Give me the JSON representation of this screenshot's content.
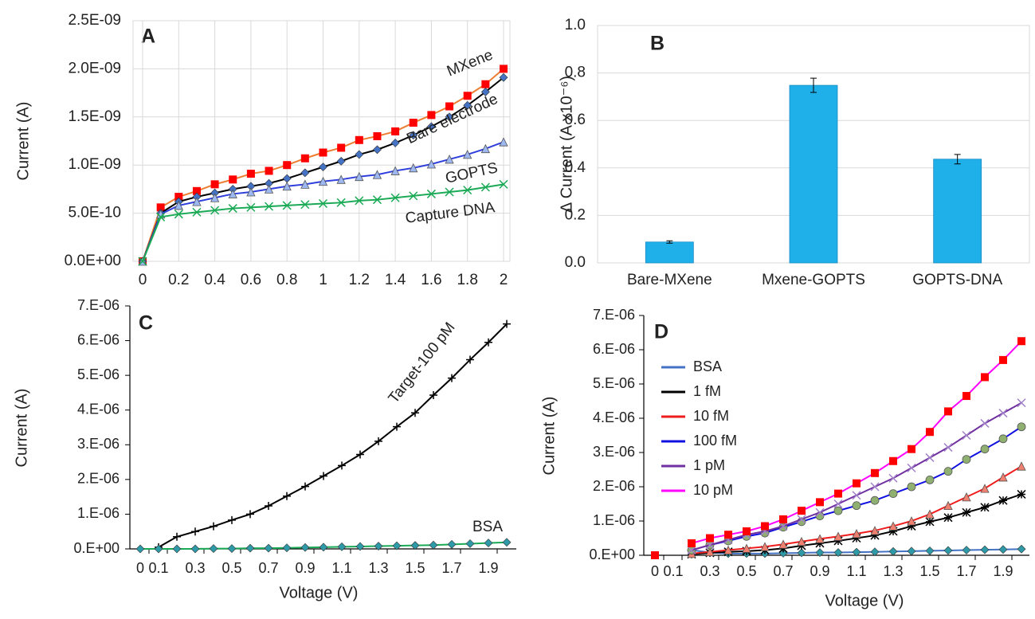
{
  "chart_data": [
    {
      "type": "line",
      "panel_label": "A",
      "y_label": "Current (A)",
      "legend": "inline",
      "grid": true,
      "x": [
        0,
        0.1,
        0.2,
        0.3,
        0.4,
        0.5,
        0.6,
        0.7,
        0.8,
        0.9,
        1,
        1.1,
        1.2,
        1.3,
        1.4,
        1.5,
        1.6,
        1.7,
        1.8,
        1.9,
        2
      ],
      "xlim": [
        0,
        2
      ],
      "xticks": [
        0,
        0.2,
        0.4,
        0.6,
        0.8,
        1,
        1.2,
        1.4,
        1.6,
        1.8,
        2
      ],
      "ylim": [
        0,
        2.5e-09
      ],
      "yticks": [
        {
          "value": 0,
          "label": "0.0E+00"
        },
        {
          "value": 5e-10,
          "label": "5.0E-10"
        },
        {
          "value": 1e-09,
          "label": "1.0E-09"
        },
        {
          "value": 1.5e-09,
          "label": "1.5E-09"
        },
        {
          "value": 2e-09,
          "label": "2.0E-09"
        },
        {
          "value": 2.5e-09,
          "label": "2.5E-09"
        }
      ],
      "series": [
        {
          "name": "MXene",
          "color": "#ed7d31",
          "marker": "square",
          "marker_color": "#ff0000",
          "values": [
            0,
            5.6e-10,
            6.7e-10,
            7.3e-10,
            8e-10,
            8.5e-10,
            9.1e-10,
            9.4e-10,
            1e-09,
            1.07e-09,
            1.13e-09,
            1.18e-09,
            1.26e-09,
            1.3e-09,
            1.35e-09,
            1.44e-09,
            1.52e-09,
            1.61e-09,
            1.72e-09,
            1.84e-09,
            2e-09
          ]
        },
        {
          "name": "Bare electrode",
          "color": "#000000",
          "marker": "diamond",
          "marker_color": "#4472c4",
          "values": [
            0,
            5e-10,
            6.2e-10,
            6.7e-10,
            7.1e-10,
            7.5e-10,
            7.8e-10,
            8.1e-10,
            8.6e-10,
            9.2e-10,
            9.8e-10,
            1.04e-09,
            1.11e-09,
            1.16e-09,
            1.23e-09,
            1.31e-09,
            1.4e-09,
            1.5e-09,
            1.62e-09,
            1.76e-09,
            1.91e-09
          ]
        },
        {
          "name": "GOPTS",
          "color": "#2f3fdc",
          "marker": "triangle",
          "marker_color": "#9db7f0",
          "values": [
            0,
            4.9e-10,
            5.8e-10,
            6.2e-10,
            6.6e-10,
            7e-10,
            7.2e-10,
            7.5e-10,
            7.8e-10,
            8e-10,
            8.3e-10,
            8.5e-10,
            8.8e-10,
            9e-10,
            9.4e-10,
            9.7e-10,
            1.01e-09,
            1.06e-09,
            1.11e-09,
            1.17e-09,
            1.24e-09
          ]
        },
        {
          "name": "Capture DNA",
          "color": "#1aaa55",
          "marker": "x",
          "marker_color": "#1aaa55",
          "values": [
            0,
            4.6e-10,
            4.9e-10,
            5.1e-10,
            5.3e-10,
            5.5e-10,
            5.6e-10,
            5.7e-10,
            5.8e-10,
            5.9e-10,
            6e-10,
            6.1e-10,
            6.3e-10,
            6.4e-10,
            6.6e-10,
            6.8e-10,
            7e-10,
            7.2e-10,
            7.4e-10,
            7.7e-10,
            8e-10
          ]
        }
      ]
    },
    {
      "type": "bar",
      "panel_label": "B",
      "y_label": "Δ Current (A x10⁻⁶)",
      "grid": true,
      "color": "#1fb0ea",
      "categories": [
        "Bare-MXene",
        "Mxene-GOPTS",
        "GOPTS-DNA"
      ],
      "values": [
        0.088,
        0.748,
        0.437
      ],
      "errors": [
        0.005,
        0.03,
        0.02
      ],
      "ylim": [
        0,
        1
      ],
      "yticks": [
        {
          "value": 0,
          "label": "0.0"
        },
        0.2,
        0.4,
        0.6,
        0.8,
        {
          "value": 1,
          "label": "1.0"
        }
      ]
    },
    {
      "type": "line",
      "panel_label": "C",
      "y_label": "Current (A)",
      "x_label": "Voltage (V)",
      "legend": "inline",
      "grid": false,
      "x": [
        0,
        0.1,
        0.2,
        0.3,
        0.4,
        0.5,
        0.6,
        0.7,
        0.8,
        0.9,
        1,
        1.1,
        1.2,
        1.3,
        1.4,
        1.5,
        1.6,
        1.7,
        1.8,
        1.9,
        2
      ],
      "xlim": [
        0,
        2
      ],
      "xticks": [
        0,
        0.1,
        0.3,
        0.5,
        0.7,
        0.9,
        1.1,
        1.3,
        1.5,
        1.7,
        1.9
      ],
      "ylim": [
        0,
        7e-06
      ],
      "yticks": [
        {
          "value": 0,
          "label": "0.E+00"
        },
        {
          "value": 1e-06,
          "label": "1.E-06"
        },
        {
          "value": 2e-06,
          "label": "2.E-06"
        },
        {
          "value": 3e-06,
          "label": "3.E-06"
        },
        {
          "value": 4e-06,
          "label": "4.E-06"
        },
        {
          "value": 5e-06,
          "label": "5.E-06"
        },
        {
          "value": 6e-06,
          "label": "6.E-06"
        },
        {
          "value": 7e-06,
          "label": "7.E-06"
        }
      ],
      "series": [
        {
          "name": "Target-100 pM",
          "color": "#000000",
          "marker": "plus",
          "marker_color": "#000000",
          "values": [
            null,
            5e-08,
            3.5e-07,
            5e-07,
            6.5e-07,
            8.3e-07,
            1e-06,
            1.24e-06,
            1.52e-06,
            1.8e-06,
            2.1e-06,
            2.4e-06,
            2.72e-06,
            3.1e-06,
            3.52e-06,
            3.92e-06,
            4.43e-06,
            4.92e-06,
            5.45e-06,
            5.95e-06,
            6.48e-06
          ]
        },
        {
          "name": "BSA",
          "color": "#1aaa55",
          "marker": "diamond",
          "marker_color": "#2e9aa8",
          "values": [
            0,
            0,
            0,
            0,
            1e-08,
            1e-08,
            2e-08,
            2e-08,
            3e-08,
            4e-08,
            5e-08,
            6e-08,
            7e-08,
            8e-08,
            9e-08,
            1e-07,
            1.1e-07,
            1.3e-07,
            1.5e-07,
            1.7e-07,
            1.9e-07
          ]
        }
      ]
    },
    {
      "type": "line",
      "panel_label": "D",
      "y_label": "Current (A)",
      "x_label": "Voltage (V)",
      "legend": "upper left",
      "grid": false,
      "x": [
        0,
        0.1,
        0.2,
        0.3,
        0.4,
        0.5,
        0.6,
        0.7,
        0.8,
        0.9,
        1,
        1.1,
        1.2,
        1.3,
        1.4,
        1.5,
        1.6,
        1.7,
        1.8,
        1.9,
        2
      ],
      "xlim": [
        0,
        2
      ],
      "xticks": [
        0,
        0.1,
        0.3,
        0.5,
        0.7,
        0.9,
        1.1,
        1.3,
        1.5,
        1.7,
        1.9
      ],
      "ylim": [
        0,
        7e-06
      ],
      "yticks": [
        {
          "value": 0,
          "label": "0.E+00"
        },
        {
          "value": 1e-06,
          "label": "1.E-06"
        },
        {
          "value": 2e-06,
          "label": "2.E-06"
        },
        {
          "value": 3e-06,
          "label": "3.E-06"
        },
        {
          "value": 4e-06,
          "label": "4.E-06"
        },
        {
          "value": 5e-06,
          "label": "5.E-06"
        },
        {
          "value": 6e-06,
          "label": "6.E-06"
        },
        {
          "value": 7e-06,
          "label": "7.E-06"
        }
      ],
      "series": [
        {
          "name": "BSA",
          "color": "#4472c4",
          "marker": "diamond",
          "marker_color": "#2e9aa8",
          "values": [
            null,
            null,
            1.5e-07,
            8e-08,
            5e-08,
            5e-08,
            5e-08,
            6e-08,
            7e-08,
            8e-08,
            8e-08,
            9e-08,
            1e-07,
            1.1e-07,
            1.2e-07,
            1.3e-07,
            1.4e-07,
            1.5e-07,
            1.6e-07,
            1.7e-07,
            1.8e-07
          ]
        },
        {
          "name": "1 fM",
          "color": "#000000",
          "marker": "star",
          "marker_color": "#000000",
          "values": [
            null,
            null,
            3e-08,
            7e-08,
            1e-07,
            1.2e-07,
            1.5e-07,
            2e-07,
            2.8e-07,
            3.5e-07,
            4.2e-07,
            5e-07,
            5.8e-07,
            7e-07,
            8.5e-07,
            9.8e-07,
            1.1e-06,
            1.25e-06,
            1.4e-06,
            1.6e-06,
            1.78e-06
          ]
        },
        {
          "name": "10 fM",
          "color": "#ee1c1c",
          "marker": "triangle",
          "marker_color": "#f08070",
          "values": [
            null,
            null,
            5e-08,
            1e-07,
            1.5e-07,
            2e-07,
            2.5e-07,
            3.2e-07,
            4e-07,
            4.8e-07,
            5.5e-07,
            6.3e-07,
            7.2e-07,
            8.5e-07,
            1e-06,
            1.2e-06,
            1.45e-06,
            1.7e-06,
            1.95e-06,
            2.28e-06,
            2.6e-06
          ]
        },
        {
          "name": "100 fM",
          "color": "#1010e0",
          "marker": "circle",
          "marker_color": "#8fb070",
          "values": [
            null,
            null,
            1.5e-07,
            3e-07,
            4.2e-07,
            5.5e-07,
            6.5e-07,
            8.2e-07,
            9.8e-07,
            1.15e-06,
            1.3e-06,
            1.45e-06,
            1.6e-06,
            1.8e-06,
            2e-06,
            2.2e-06,
            2.45e-06,
            2.8e-06,
            3.1e-06,
            3.4e-06,
            3.75e-06
          ]
        },
        {
          "name": "1 pM",
          "color": "#7030a0",
          "marker": "x",
          "marker_color": "#a080c8",
          "values": [
            null,
            null,
            1.5e-07,
            3e-07,
            4.5e-07,
            6e-07,
            7e-07,
            8.5e-07,
            1.05e-06,
            1.25e-06,
            1.5e-06,
            1.75e-06,
            2e-06,
            2.25e-06,
            2.55e-06,
            2.85e-06,
            3.15e-06,
            3.5e-06,
            3.85e-06,
            4.15e-06,
            4.45e-06
          ]
        },
        {
          "name": "10 pM",
          "color": "#ff00ff",
          "marker": "square",
          "marker_color": "#ff0000",
          "values": [
            0,
            null,
            3.5e-07,
            5e-07,
            6e-07,
            7e-07,
            8.5e-07,
            1.05e-06,
            1.3e-06,
            1.55e-06,
            1.8e-06,
            2.1e-06,
            2.4e-06,
            2.75e-06,
            3.1e-06,
            3.6e-06,
            4.2e-06,
            4.65e-06,
            5.2e-06,
            5.7e-06,
            6.25e-06
          ]
        }
      ]
    }
  ]
}
